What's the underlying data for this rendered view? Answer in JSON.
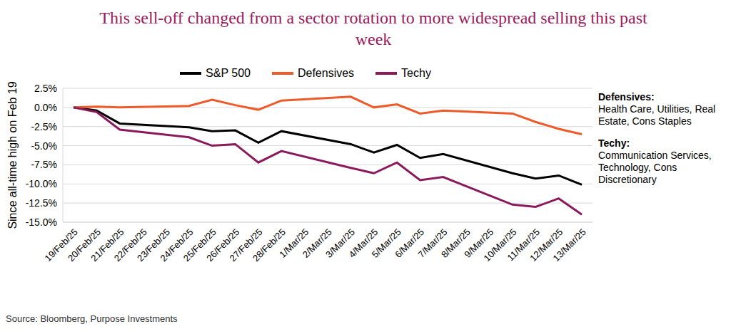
{
  "chart_data": {
    "type": "line",
    "title": "This sell-off changed from a sector rotation to more widespread selling this past week",
    "y_label": "Since all-time high on Feb 19",
    "source": "Source: Bloomberg, Purpose Investments",
    "categories": [
      "19/Feb/25",
      "20/Feb/25",
      "21/Feb/25",
      "22/Feb/25",
      "23/Feb/25",
      "24/Feb/25",
      "25/Feb/25",
      "26/Feb/25",
      "27/Feb/25",
      "28/Feb/25",
      "1/Mar/25",
      "2/Mar/25",
      "3/Mar/25",
      "4/Mar/25",
      "5/Mar/25",
      "6/Mar/25",
      "7/Mar/25",
      "8/Mar/25",
      "9/Mar/25",
      "10/Mar/25",
      "11/Mar/25",
      "12/Mar/25",
      "13/Mar/25"
    ],
    "series": [
      {
        "name": "S&P 500",
        "color": "#000000",
        "values": [
          0,
          -0.4,
          -2.1,
          null,
          null,
          -2.6,
          -3.1,
          -3.0,
          -4.6,
          -3.1,
          null,
          null,
          -4.8,
          -5.9,
          -4.9,
          -6.6,
          -6.1,
          null,
          null,
          -8.6,
          -9.3,
          -8.9,
          -10.1
        ]
      },
      {
        "name": "Defensives",
        "color": "#ee5a2a",
        "values": [
          0,
          0.1,
          0.0,
          null,
          null,
          0.2,
          1.0,
          0.3,
          -0.3,
          0.9,
          null,
          null,
          1.4,
          0.0,
          0.4,
          -0.8,
          -0.4,
          null,
          null,
          -0.8,
          -1.9,
          -2.8,
          -3.5
        ]
      },
      {
        "name": "Techy",
        "color": "#8a1a5c",
        "values": [
          0,
          -0.6,
          -2.9,
          null,
          null,
          -3.9,
          -5.0,
          -4.8,
          -7.2,
          -5.7,
          null,
          null,
          -7.9,
          -8.6,
          -7.2,
          -9.5,
          -9.1,
          null,
          null,
          -12.7,
          -13.0,
          -11.9,
          -14.0
        ]
      }
    ],
    "ylim": [
      -15,
      2.5
    ],
    "yticks": [
      {
        "value": 2.5,
        "label": "2.5%"
      },
      {
        "value": 0,
        "label": "0.0%"
      },
      {
        "value": -2.5,
        "label": "-2.5%"
      },
      {
        "value": -5,
        "label": "-5.0%"
      },
      {
        "value": -7.5,
        "label": "-7.5%"
      },
      {
        "value": -10,
        "label": "-10.0%"
      },
      {
        "value": -12.5,
        "label": "-12.5%"
      },
      {
        "value": -15,
        "label": "-15.0%"
      }
    ],
    "grid": true,
    "legend": "top",
    "annotations": [
      {
        "title": "Defensives:",
        "text": "Health Care, Utilities, Real Estate, Cons Staples"
      },
      {
        "title": "Techy:",
        "text": "Communication Services, Technology, Cons Discretionary"
      }
    ]
  }
}
